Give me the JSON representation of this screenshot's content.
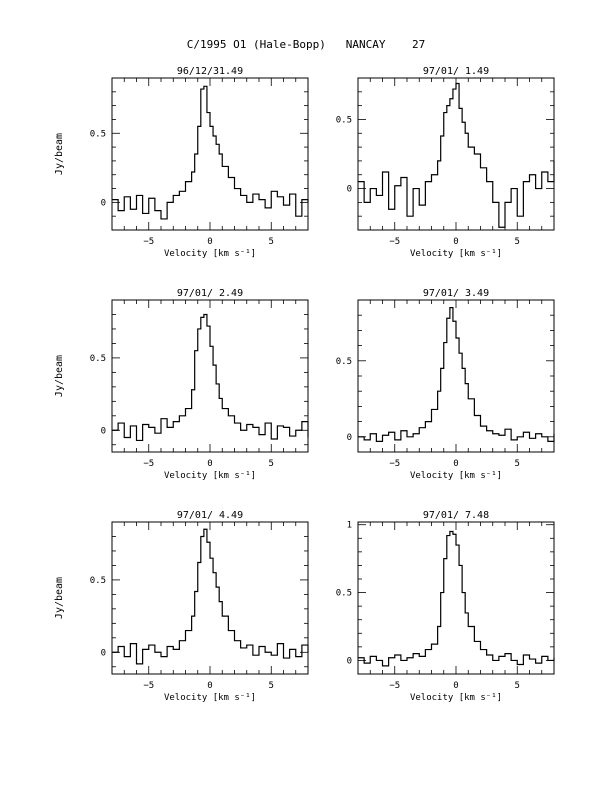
{
  "page": {
    "title": "C/1995 O1 (Hale-Bopp)   NANCAY    27"
  },
  "chart_data": [
    {
      "type": "line",
      "title": "96/12/31.49",
      "xlabel": "Velocity [km s⁻¹]",
      "ylabel": "Jy/beam",
      "xlim": [
        -8,
        8
      ],
      "ylim": [
        -0.2,
        0.9
      ],
      "xticks": [
        -5,
        0,
        5
      ],
      "yticks": [
        0,
        0.5
      ],
      "series": [
        {
          "x": [
            -8,
            -7.5,
            -7,
            -6.5,
            -6,
            -5.5,
            -5,
            -4.5,
            -4,
            -3.5,
            -3,
            -2.5,
            -2,
            -1.5,
            -1.25,
            -1,
            -0.75,
            -0.5,
            -0.25,
            0,
            0.25,
            0.5,
            0.75,
            1,
            1.5,
            2,
            2.5,
            3,
            3.5,
            4,
            4.5,
            5,
            5.5,
            6,
            6.5,
            7,
            7.5,
            8
          ],
          "y": [
            0.02,
            -0.06,
            0.04,
            -0.05,
            0.05,
            -0.08,
            0.03,
            -0.06,
            -0.12,
            0.0,
            0.05,
            0.08,
            0.15,
            0.22,
            0.35,
            0.55,
            0.82,
            0.84,
            0.65,
            0.55,
            0.48,
            0.42,
            0.35,
            0.26,
            0.18,
            0.1,
            0.05,
            0.0,
            0.06,
            0.02,
            -0.04,
            0.08,
            0.04,
            -0.02,
            0.06,
            -0.1,
            0.02,
            0.0
          ]
        }
      ]
    },
    {
      "type": "line",
      "title": "97/01/ 1.49",
      "xlabel": "Velocity [km s⁻¹]",
      "ylabel": "",
      "xlim": [
        -8,
        8
      ],
      "ylim": [
        -0.3,
        0.8
      ],
      "xticks": [
        -5,
        0,
        5
      ],
      "yticks": [
        0,
        0.5
      ],
      "series": [
        {
          "x": [
            -8,
            -7.5,
            -7,
            -6.5,
            -6,
            -5.5,
            -5,
            -4.5,
            -4,
            -3.5,
            -3,
            -2.5,
            -2,
            -1.5,
            -1.25,
            -1,
            -0.75,
            -0.5,
            -0.25,
            0,
            0.25,
            0.5,
            0.75,
            1,
            1.5,
            2,
            2.5,
            3,
            3.5,
            4,
            4.5,
            5,
            5.5,
            6,
            6.5,
            7,
            7.5,
            8
          ],
          "y": [
            0.05,
            -0.1,
            0.0,
            -0.05,
            0.12,
            -0.15,
            0.02,
            0.08,
            -0.2,
            0.0,
            -0.12,
            0.05,
            0.1,
            0.2,
            0.38,
            0.55,
            0.6,
            0.65,
            0.72,
            0.76,
            0.58,
            0.48,
            0.4,
            0.3,
            0.25,
            0.15,
            0.05,
            -0.1,
            -0.28,
            -0.1,
            0.0,
            -0.2,
            0.05,
            0.1,
            0.0,
            0.12,
            0.05,
            0.2
          ]
        }
      ]
    },
    {
      "type": "line",
      "title": "97/01/ 2.49",
      "xlabel": "Velocity [km s⁻¹]",
      "ylabel": "Jy/beam",
      "xlim": [
        -8,
        8
      ],
      "ylim": [
        -0.15,
        0.9
      ],
      "xticks": [
        -5,
        0,
        5
      ],
      "yticks": [
        0,
        0.5
      ],
      "series": [
        {
          "x": [
            -8,
            -7.5,
            -7,
            -6.5,
            -6,
            -5.5,
            -5,
            -4.5,
            -4,
            -3.5,
            -3,
            -2.5,
            -2,
            -1.5,
            -1.25,
            -1,
            -0.75,
            -0.5,
            -0.25,
            0,
            0.25,
            0.5,
            0.75,
            1,
            1.5,
            2,
            2.5,
            3,
            3.5,
            4,
            4.5,
            5,
            5.5,
            6,
            6.5,
            7,
            7.5,
            8
          ],
          "y": [
            0.0,
            0.05,
            -0.05,
            0.03,
            -0.07,
            0.04,
            0.02,
            -0.02,
            0.08,
            0.02,
            0.06,
            0.1,
            0.15,
            0.28,
            0.55,
            0.7,
            0.78,
            0.8,
            0.72,
            0.58,
            0.45,
            0.32,
            0.22,
            0.15,
            0.1,
            0.05,
            0.0,
            0.04,
            0.02,
            -0.03,
            0.05,
            -0.06,
            0.03,
            0.02,
            -0.04,
            0.0,
            0.06,
            -0.05
          ]
        }
      ]
    },
    {
      "type": "line",
      "title": "97/01/ 3.49",
      "xlabel": "Velocity [km s⁻¹]",
      "ylabel": "",
      "xlim": [
        -8,
        8
      ],
      "ylim": [
        -0.1,
        0.9
      ],
      "xticks": [
        -5,
        0,
        5
      ],
      "yticks": [
        0,
        0.5
      ],
      "series": [
        {
          "x": [
            -8,
            -7.5,
            -7,
            -6.5,
            -6,
            -5.5,
            -5,
            -4.5,
            -4,
            -3.5,
            -3,
            -2.5,
            -2,
            -1.5,
            -1.25,
            -1,
            -0.75,
            -0.5,
            -0.25,
            0,
            0.25,
            0.5,
            0.75,
            1,
            1.5,
            2,
            2.5,
            3,
            3.5,
            4,
            4.5,
            5,
            5.5,
            6,
            6.5,
            7,
            7.5,
            8
          ],
          "y": [
            0.0,
            -0.02,
            0.02,
            -0.03,
            0.01,
            0.03,
            -0.02,
            0.04,
            0.0,
            0.02,
            0.06,
            0.1,
            0.18,
            0.3,
            0.45,
            0.62,
            0.78,
            0.85,
            0.76,
            0.65,
            0.55,
            0.45,
            0.35,
            0.25,
            0.14,
            0.07,
            0.04,
            0.02,
            0.01,
            0.05,
            -0.02,
            0.0,
            0.03,
            -0.01,
            0.02,
            0.0,
            -0.03,
            0.02
          ]
        }
      ]
    },
    {
      "type": "line",
      "title": "97/01/ 4.49",
      "xlabel": "Velocity [km s⁻¹]",
      "ylabel": "Jy/beam",
      "xlim": [
        -8,
        8
      ],
      "ylim": [
        -0.15,
        0.9
      ],
      "xticks": [
        -5,
        0,
        5
      ],
      "yticks": [
        0,
        0.5
      ],
      "series": [
        {
          "x": [
            -8,
            -7.5,
            -7,
            -6.5,
            -6,
            -5.5,
            -5,
            -4.5,
            -4,
            -3.5,
            -3,
            -2.5,
            -2,
            -1.5,
            -1.25,
            -1,
            -0.75,
            -0.5,
            -0.25,
            0,
            0.25,
            0.5,
            0.75,
            1,
            1.5,
            2,
            2.5,
            3,
            3.5,
            4,
            4.5,
            5,
            5.5,
            6,
            6.5,
            7,
            7.5,
            8
          ],
          "y": [
            0.0,
            0.04,
            -0.03,
            0.06,
            -0.08,
            0.02,
            0.05,
            0.0,
            -0.03,
            0.04,
            0.02,
            0.08,
            0.15,
            0.25,
            0.42,
            0.62,
            0.8,
            0.85,
            0.76,
            0.65,
            0.55,
            0.45,
            0.35,
            0.25,
            0.15,
            0.08,
            0.03,
            0.05,
            -0.02,
            0.04,
            0.0,
            -0.02,
            0.06,
            -0.04,
            0.02,
            -0.03,
            0.05,
            0.0
          ]
        }
      ]
    },
    {
      "type": "line",
      "title": "97/01/ 7.48",
      "xlabel": "Velocity [km s⁻¹]",
      "ylabel": "",
      "xlim": [
        -8,
        8
      ],
      "ylim": [
        -0.1,
        1.02
      ],
      "xticks": [
        -5,
        0,
        5
      ],
      "yticks": [
        0,
        0.5,
        1
      ],
      "yticklabels": [
        "0",
        "0.5",
        "1"
      ],
      "series": [
        {
          "x": [
            -8,
            -7.5,
            -7,
            -6.5,
            -6,
            -5.5,
            -5,
            -4.5,
            -4,
            -3.5,
            -3,
            -2.5,
            -2,
            -1.5,
            -1.25,
            -1,
            -0.75,
            -0.5,
            -0.25,
            0,
            0.25,
            0.5,
            0.75,
            1,
            1.5,
            2,
            2.5,
            3,
            3.5,
            4,
            4.5,
            5,
            5.5,
            6,
            6.5,
            7,
            7.5,
            8
          ],
          "y": [
            0.02,
            -0.02,
            0.03,
            0.0,
            -0.04,
            0.02,
            0.04,
            0.0,
            0.02,
            0.05,
            0.03,
            0.08,
            0.12,
            0.25,
            0.5,
            0.75,
            0.92,
            0.95,
            0.93,
            0.85,
            0.7,
            0.5,
            0.35,
            0.25,
            0.14,
            0.08,
            0.04,
            0.0,
            0.03,
            0.05,
            0.0,
            -0.03,
            0.04,
            0.01,
            -0.02,
            0.03,
            0.0,
            0.02
          ]
        }
      ]
    }
  ]
}
